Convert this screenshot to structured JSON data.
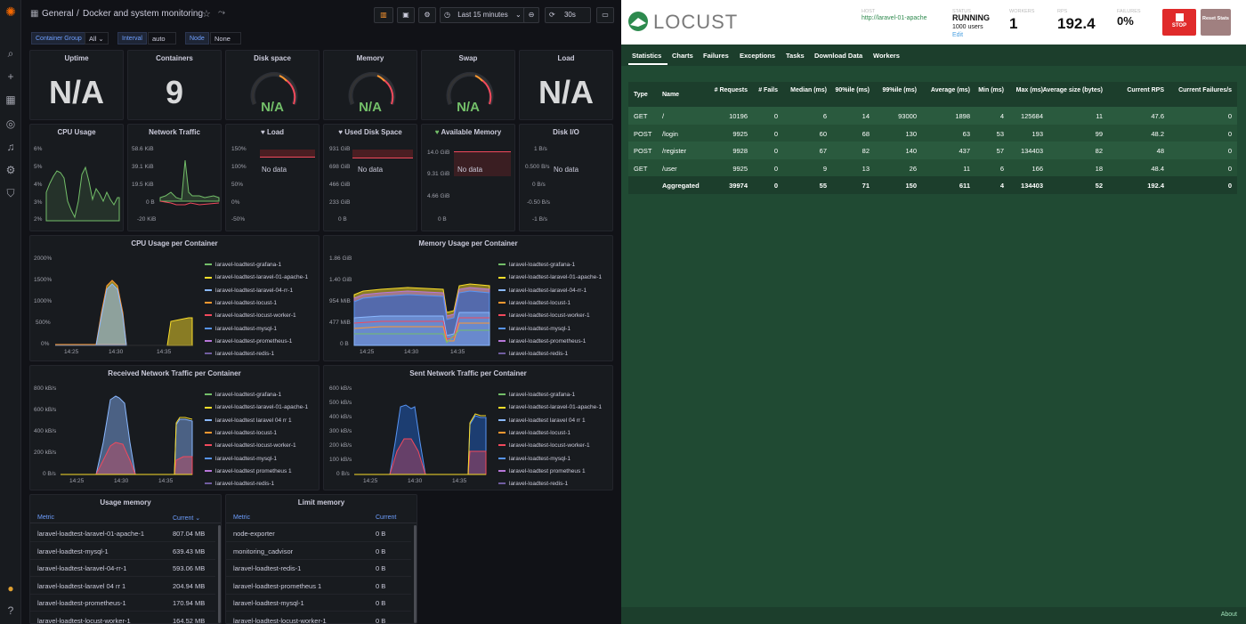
{
  "grafana": {
    "breadcrumb": {
      "folder": "General",
      "sep": "/",
      "title": "Docker and system monitoring"
    },
    "time_range": "Last 15 minutes",
    "refresh": "30s",
    "vars": [
      {
        "label": "Container Group",
        "value": "All"
      },
      {
        "label": "Interval",
        "value": "auto"
      },
      {
        "label": "Node",
        "value": "None"
      }
    ],
    "stats": {
      "uptime": {
        "title": "Uptime",
        "value": "N/A"
      },
      "containers": {
        "title": "Containers",
        "value": "9"
      },
      "disk_space": {
        "title": "Disk space",
        "value": "N/A"
      },
      "memory": {
        "title": "Memory",
        "value": "N/A"
      },
      "swap": {
        "title": "Swap",
        "value": "N/A"
      },
      "load": {
        "title": "Load",
        "value": "N/A"
      }
    },
    "small_panels": {
      "cpu": {
        "title": "CPU Usage",
        "ticks": [
          "6%",
          "5%",
          "4%",
          "3%",
          "2%"
        ]
      },
      "net": {
        "title": "Network Traffic",
        "ticks": [
          "58.6 KiB",
          "39.1 KiB",
          "19.5 KiB",
          "0 B",
          "-20 KiB"
        ]
      },
      "load": {
        "title": "Load",
        "ticks": [
          "150%",
          "100%",
          "50%",
          "0%",
          "-50%"
        ],
        "nodata": "No data"
      },
      "disk": {
        "title": "Used Disk Space",
        "ticks": [
          "931 GiB",
          "698 GiB",
          "466 GiB",
          "233 GiB",
          "0 B"
        ],
        "nodata": "No data"
      },
      "avail": {
        "title": "Available Memory",
        "ticks": [
          "14.0 GiB",
          "9.31 GiB",
          "4.66 GiB",
          "0 B"
        ],
        "nodata": "No data"
      },
      "diskio": {
        "title": "Disk I/O",
        "ticks": [
          "1 B/s",
          "0.500 B/s",
          "0 B/s",
          "-0.50 B/s",
          "-1 B/s"
        ],
        "nodata": "No data"
      }
    },
    "legend": [
      {
        "name": "laravel-loadtest-grafana-1",
        "color": "#73bf69"
      },
      {
        "name": "laravel-loadtest-laravel-01-apache-1",
        "color": "#fade2a"
      },
      {
        "name": "laravel-loadtest-laravel-04-rr-1",
        "color": "#8ab8ff"
      },
      {
        "name": "laravel-loadtest-locust-1",
        "color": "#ff9830"
      },
      {
        "name": "laravel-loadtest-locust-worker-1",
        "color": "#f2495c"
      },
      {
        "name": "laravel-loadtest-mysql-1",
        "color": "#5794f2"
      },
      {
        "name": "laravel-loadtest-prometheus-1",
        "color": "#b877d9"
      },
      {
        "name": "laravel-loadtest-redis-1",
        "color": "#705da0"
      }
    ],
    "legend_net": [
      "laravel-loadtest-grafana-1",
      "laravel-loadtest-laravel-01-apache-1",
      "laravel-loadtest laravel 04 rr 1",
      "laravel-loadtest-locust-1",
      "laravel-loadtest-locust-worker-1",
      "laravel-loadtest-mysql-1",
      "laravel-loadtest prometheus 1",
      "laravel-loadtest-redis-1"
    ],
    "big_panels": {
      "cpu": {
        "title": "CPU Usage per Container",
        "ticks": [
          "2000%",
          "1500%",
          "1000%",
          "500%",
          "0%"
        ],
        "xticks": [
          "14:25",
          "14:30",
          "14:35"
        ]
      },
      "mem": {
        "title": "Memory Usage per Container",
        "ticks": [
          "1.86 GiB",
          "1.40 GiB",
          "954 MiB",
          "477 MiB",
          "0 B"
        ],
        "xticks": [
          "14:25",
          "14:30",
          "14:35"
        ]
      },
      "rx": {
        "title": "Received Network Traffic per Container",
        "ticks": [
          "800 kB/s",
          "600 kB/s",
          "400 kB/s",
          "200 kB/s",
          "0 B/s"
        ],
        "xticks": [
          "14:25",
          "14:30",
          "14:35"
        ]
      },
      "tx": {
        "title": "Sent Network Traffic per Container",
        "ticks": [
          "600 kB/s",
          "500 kB/s",
          "400 kB/s",
          "300 kB/s",
          "200 kB/s",
          "100 kB/s",
          "0 B/s"
        ],
        "xticks": [
          "14:25",
          "14:30",
          "14:35"
        ]
      }
    },
    "usage_memory": {
      "title": "Usage memory",
      "headers": [
        "Metric",
        "Current"
      ],
      "rows": [
        [
          "laravel-loadtest-laravel-01-apache-1",
          "807.04 MB"
        ],
        [
          "laravel-loadtest-mysql-1",
          "639.43 MB"
        ],
        [
          "laravel-loadtest-laravel-04-rr-1",
          "593.06 MB"
        ],
        [
          "laravel-loadtest-laravel 04 rr 1",
          "204.94 MB"
        ],
        [
          "laravel-loadtest-prometheus-1",
          "170.94 MB"
        ],
        [
          "laravel-loadtest-locust-worker-1",
          "164.52 MB"
        ]
      ]
    },
    "limit_memory": {
      "title": "Limit memory",
      "headers": [
        "Metric",
        "Current"
      ],
      "rows": [
        [
          "node-exporter",
          "0 B"
        ],
        [
          "monitoring_cadvisor",
          "0 B"
        ],
        [
          "laravel-loadtest-redis-1",
          "0 B"
        ],
        [
          "laravel-loadtest-prometheus 1",
          "0 B"
        ],
        [
          "laravel-loadtest-mysql-1",
          "0 B"
        ],
        [
          "laravel-loadtest-locust-worker-1",
          "0 B"
        ]
      ]
    }
  },
  "locust": {
    "logo": "LOCUST",
    "host_label": "HOST",
    "host": "http://laravel-01-apache",
    "status_label": "STATUS",
    "status": "RUNNING",
    "users": "1000 users",
    "edit": "Edit",
    "workers_label": "WORKERS",
    "workers": "1",
    "rps_label": "RPS",
    "rps": "192.4",
    "failures_label": "FAILURES",
    "failures": "0%",
    "stop": "STOP",
    "reset": "Reset Stats",
    "tabs": [
      "Statistics",
      "Charts",
      "Failures",
      "Exceptions",
      "Tasks",
      "Download Data",
      "Workers"
    ],
    "headers": [
      "Type",
      "Name",
      "# Requests",
      "# Fails",
      "Median (ms)",
      "90%ile (ms)",
      "99%ile (ms)",
      "Average (ms)",
      "Min (ms)",
      "Max (ms)",
      "Average size (bytes)",
      "Current RPS",
      "Current Failures/s"
    ],
    "rows": [
      [
        "GET",
        "/",
        "10196",
        "0",
        "6",
        "14",
        "93000",
        "1898",
        "4",
        "125684",
        "11",
        "47.6",
        "0"
      ],
      [
        "POST",
        "/login",
        "9925",
        "0",
        "60",
        "68",
        "130",
        "63",
        "53",
        "193",
        "99",
        "48.2",
        "0"
      ],
      [
        "POST",
        "/register",
        "9928",
        "0",
        "67",
        "82",
        "140",
        "437",
        "57",
        "134403",
        "82",
        "48",
        "0"
      ],
      [
        "GET",
        "/user",
        "9925",
        "0",
        "9",
        "13",
        "26",
        "11",
        "6",
        "166",
        "18",
        "48.4",
        "0"
      ]
    ],
    "aggregated": [
      "",
      "Aggregated",
      "39974",
      "0",
      "55",
      "71",
      "150",
      "611",
      "4",
      "134403",
      "52",
      "192.4",
      "0"
    ],
    "about": "About"
  }
}
